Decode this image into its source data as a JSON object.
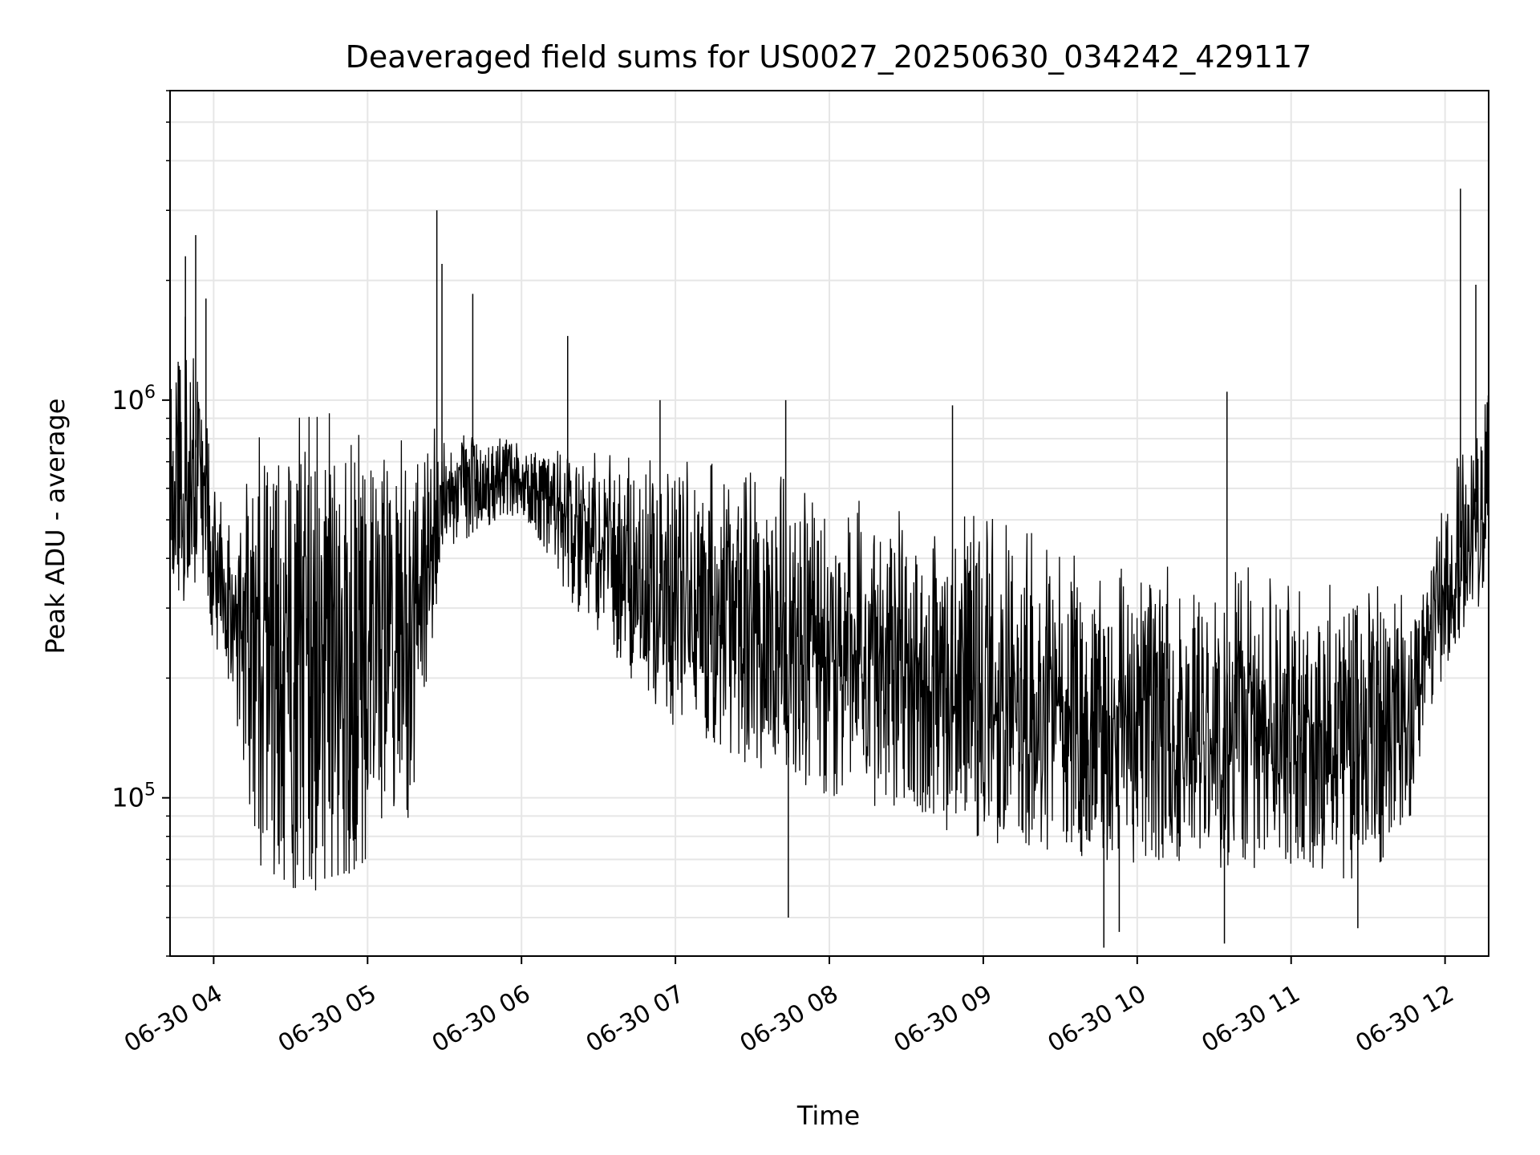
{
  "chart_data": {
    "type": "line",
    "title": "Deaveraged field sums for US0027_20250630_034242_429117",
    "xlabel": "Time",
    "ylabel": "Peak ADU - average",
    "yscale": "log",
    "ylim": [
      40000,
      6000000
    ],
    "xlim": [
      "2025-06-30T03:43:00",
      "2025-06-30T12:17:00"
    ],
    "grid": true,
    "legend": "none",
    "line_color": "#000000",
    "grid_color": "#e6e6e6",
    "x_ticks": [
      {
        "label": "06-30 04",
        "value": "2025-06-30T04:00:00"
      },
      {
        "label": "06-30 05",
        "value": "2025-06-30T05:00:00"
      },
      {
        "label": "06-30 06",
        "value": "2025-06-30T06:00:00"
      },
      {
        "label": "06-30 07",
        "value": "2025-06-30T07:00:00"
      },
      {
        "label": "06-30 08",
        "value": "2025-06-30T08:00:00"
      },
      {
        "label": "06-30 09",
        "value": "2025-06-30T09:00:00"
      },
      {
        "label": "06-30 10",
        "value": "2025-06-30T10:00:00"
      },
      {
        "label": "06-30 11",
        "value": "2025-06-30T11:00:00"
      },
      {
        "label": "06-30 12",
        "value": "2025-06-30T12:00:00"
      }
    ],
    "y_ticks": [
      {
        "base": "10",
        "exp": "5",
        "value": 100000
      },
      {
        "base": "10",
        "exp": "6",
        "value": 1000000
      }
    ],
    "series": [
      {
        "x": [
          "2025-06-30T03:43:00",
          "2025-06-30T03:46:00",
          "2025-06-30T03:50:00",
          "2025-06-30T03:54:00",
          "2025-06-30T03:58:00",
          "2025-06-30T04:05:00",
          "2025-06-30T04:10:00",
          "2025-06-30T04:15:00",
          "2025-06-30T04:20:00",
          "2025-06-30T04:30:00",
          "2025-06-30T04:40:00",
          "2025-06-30T04:50:00",
          "2025-06-30T05:00:00",
          "2025-06-30T05:15:00",
          "2025-06-30T05:30:00",
          "2025-06-30T05:45:00",
          "2025-06-30T06:00:00",
          "2025-06-30T06:20:00",
          "2025-06-30T06:40:00",
          "2025-06-30T07:00:00",
          "2025-06-30T07:30:00",
          "2025-06-30T08:00:00",
          "2025-06-30T08:30:00",
          "2025-06-30T09:00:00",
          "2025-06-30T09:30:00",
          "2025-06-30T10:00:00",
          "2025-06-30T10:30:00",
          "2025-06-30T11:00:00",
          "2025-06-30T11:30:00",
          "2025-06-30T11:45:00",
          "2025-06-30T11:55:00",
          "2025-06-30T12:05:00",
          "2025-06-30T12:17:00"
        ],
        "lower": [
          330000,
          310000,
          300000,
          280000,
          260000,
          200000,
          140000,
          80000,
          62000,
          56000,
          58000,
          62000,
          70000,
          72000,
          420000,
          470000,
          520000,
          300000,
          200000,
          150000,
          120000,
          100000,
          90000,
          75000,
          70000,
          68000,
          65000,
          64000,
          62000,
          80000,
          170000,
          250000,
          290000
        ],
        "upper": [
          1100000,
          1400000,
          1500000,
          1200000,
          700000,
          450000,
          420000,
          600000,
          700000,
          750000,
          740000,
          720000,
          700000,
          730000,
          760000,
          780000,
          760000,
          680000,
          640000,
          600000,
          560000,
          500000,
          440000,
          420000,
          360000,
          330000,
          320000,
          310000,
          300000,
          290000,
          380000,
          680000,
          1150000
        ],
        "spikes": [
          {
            "x": "2025-06-30T03:49:00",
            "y": 2300000
          },
          {
            "x": "2025-06-30T03:53:00",
            "y": 2600000
          },
          {
            "x": "2025-06-30T03:57:00",
            "y": 1800000
          },
          {
            "x": "2025-06-30T05:27:00",
            "y": 3000000
          },
          {
            "x": "2025-06-30T05:29:00",
            "y": 2200000
          },
          {
            "x": "2025-06-30T05:41:00",
            "y": 1850000
          },
          {
            "x": "2025-06-30T06:18:00",
            "y": 1450000
          },
          {
            "x": "2025-06-30T06:54:00",
            "y": 1000000
          },
          {
            "x": "2025-06-30T07:43:00",
            "y": 1000000
          },
          {
            "x": "2025-06-30T08:48:00",
            "y": 970000
          },
          {
            "x": "2025-06-30T10:35:00",
            "y": 1050000
          },
          {
            "x": "2025-06-30T12:06:00",
            "y": 3400000
          },
          {
            "x": "2025-06-30T12:12:00",
            "y": 1950000
          }
        ],
        "low_spikes": [
          {
            "x": "2025-06-30T07:44:00",
            "y": 50000
          },
          {
            "x": "2025-06-30T09:47:00",
            "y": 42000
          },
          {
            "x": "2025-06-30T09:53:00",
            "y": 46000
          },
          {
            "x": "2025-06-30T10:34:00",
            "y": 43000
          },
          {
            "x": "2025-06-30T11:26:00",
            "y": 47000
          }
        ]
      }
    ]
  }
}
